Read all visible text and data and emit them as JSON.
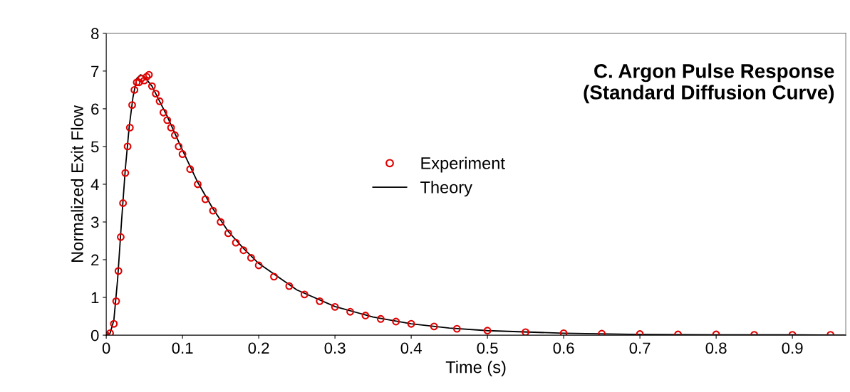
{
  "chart_data": {
    "type": "scatter",
    "title": "C. Argon Pulse Response\n(Standard Diffusion Curve)",
    "xlabel": "Time (s)",
    "ylabel": "Normalized Exit Flow",
    "series": [
      {
        "name": "Experiment",
        "color": "#e00000",
        "marker": "circle",
        "x": [
          0,
          0.005,
          0.01,
          0.013,
          0.016,
          0.019,
          0.022,
          0.025,
          0.028,
          0.031,
          0.034,
          0.037,
          0.04,
          0.043,
          0.046,
          0.05,
          0.053,
          0.056,
          0.06,
          0.065,
          0.07,
          0.075,
          0.08,
          0.085,
          0.09,
          0.095,
          0.1,
          0.11,
          0.12,
          0.13,
          0.14,
          0.15,
          0.16,
          0.17,
          0.18,
          0.19,
          0.2,
          0.22,
          0.24,
          0.26,
          0.28,
          0.3,
          0.32,
          0.34,
          0.36,
          0.38,
          0.4,
          0.43,
          0.46,
          0.5,
          0.55,
          0.6,
          0.65,
          0.7,
          0.75,
          0.8,
          0.85,
          0.9,
          0.95
        ],
        "values": [
          0,
          0.05,
          0.3,
          0.9,
          1.7,
          2.6,
          3.5,
          4.3,
          5.0,
          5.5,
          6.1,
          6.5,
          6.7,
          6.7,
          6.8,
          6.75,
          6.85,
          6.9,
          6.6,
          6.4,
          6.2,
          5.9,
          5.7,
          5.5,
          5.3,
          5.0,
          4.8,
          4.4,
          4.0,
          3.6,
          3.3,
          3.0,
          2.7,
          2.45,
          2.25,
          2.05,
          1.85,
          1.55,
          1.3,
          1.08,
          0.9,
          0.75,
          0.62,
          0.52,
          0.43,
          0.36,
          0.3,
          0.23,
          0.17,
          0.12,
          0.08,
          0.05,
          0.04,
          0.03,
          0.02,
          0.02,
          0.01,
          0.01,
          0.01
        ]
      },
      {
        "name": "Theory",
        "type": "line",
        "color": "#000000",
        "marker": "none",
        "line_style": "solid",
        "x": [
          0,
          0.005,
          0.01,
          0.015,
          0.02,
          0.025,
          0.03,
          0.035,
          0.04,
          0.045,
          0.05,
          0.06,
          0.07,
          0.08,
          0.09,
          0.1,
          0.12,
          0.14,
          0.16,
          0.18,
          0.2,
          0.25,
          0.3,
          0.35,
          0.4,
          0.45,
          0.5,
          0.6,
          0.7,
          0.8,
          0.9,
          0.97
        ],
        "values": [
          0,
          0.05,
          0.4,
          1.5,
          3.0,
          4.4,
          5.5,
          6.3,
          6.8,
          6.9,
          6.85,
          6.6,
          6.2,
          5.8,
          5.35,
          4.9,
          4.05,
          3.35,
          2.75,
          2.3,
          1.9,
          1.2,
          0.76,
          0.48,
          0.3,
          0.19,
          0.12,
          0.05,
          0.02,
          0.01,
          0.01,
          0
        ]
      }
    ],
    "xlim": [
      0,
      0.97
    ],
    "xticks": [
      0,
      0.1,
      0.2,
      0.3,
      0.4,
      0.5,
      0.6,
      0.7,
      0.8,
      0.9
    ],
    "ylim": [
      0,
      8
    ],
    "yticks": [
      0,
      1,
      2,
      3,
      4,
      5,
      6,
      7,
      8
    ],
    "grid": false,
    "legend": "center"
  }
}
